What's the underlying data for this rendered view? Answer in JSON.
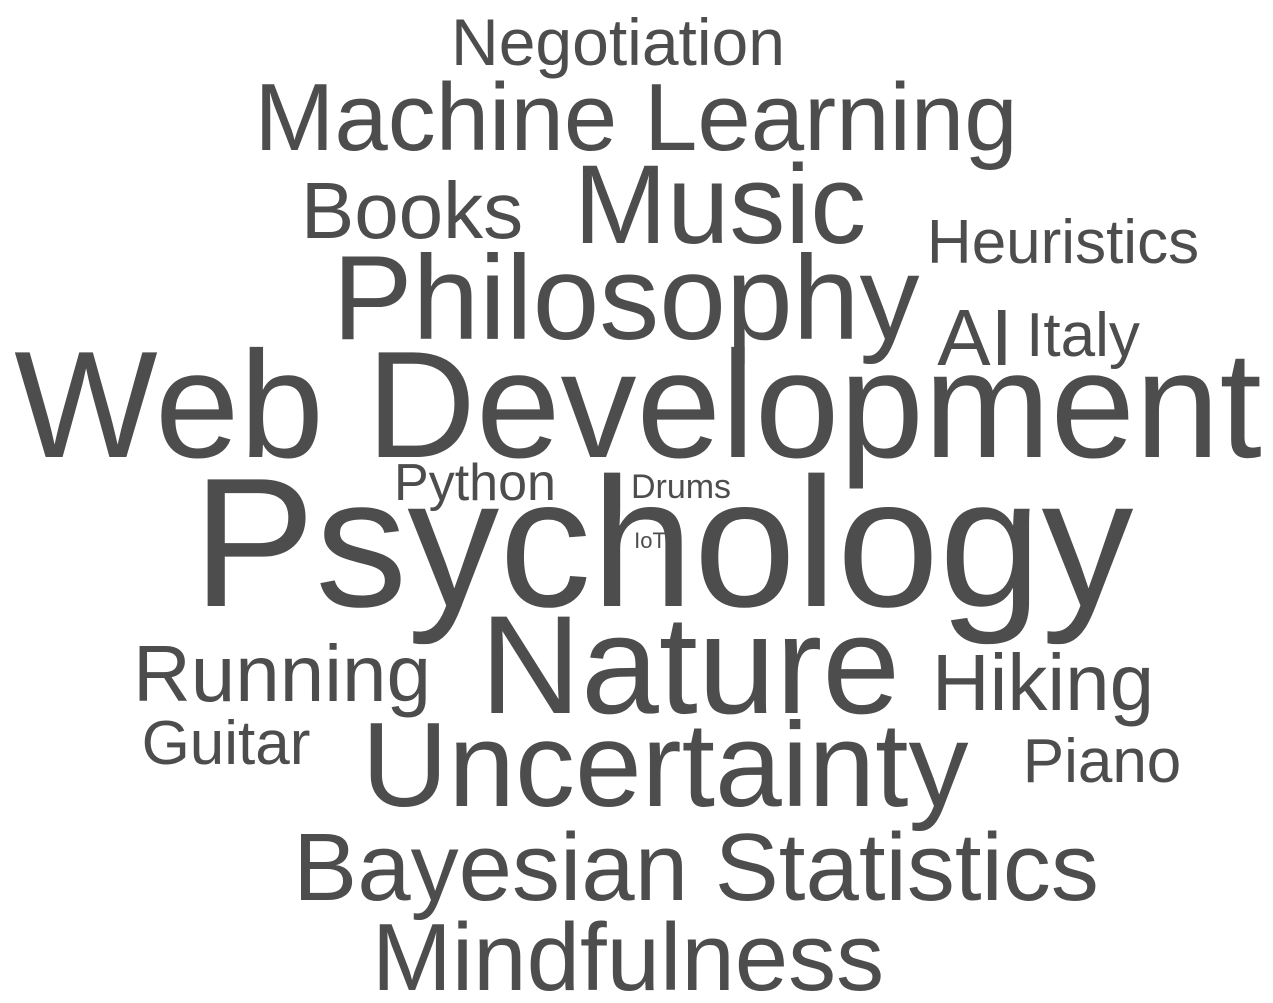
{
  "word_cloud": {
    "text_color": "#4d4d4d",
    "background_color": "#ffffff",
    "words": [
      "Negotiation",
      "Machine Learning",
      "Books",
      "Music",
      "Heuristics",
      "Philosophy",
      "AI",
      "Italy",
      "Web Development",
      "Python",
      "Drums",
      "IoT",
      "Psychology",
      "Running",
      "Nature",
      "Hiking",
      "Guitar",
      "Uncertainty",
      "Piano",
      "Bayesian Statistics",
      "Mindfulness"
    ]
  }
}
